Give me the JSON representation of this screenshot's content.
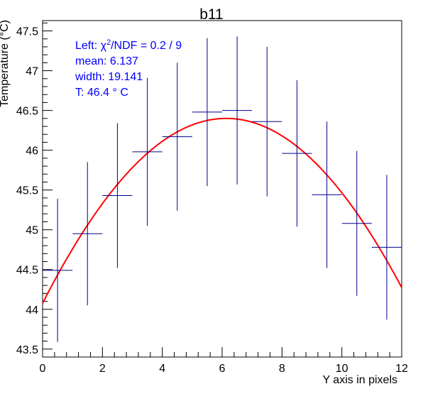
{
  "chart_data": {
    "type": "scatter",
    "title": "b11",
    "xlabel": "Y axis in pixels",
    "ylabel": "Temperature (°C)",
    "xlim": [
      0,
      12
    ],
    "ylim": [
      43.4,
      47.63
    ],
    "xticks": [
      0,
      2,
      4,
      6,
      8,
      10,
      12
    ],
    "yticks": [
      43.5,
      44,
      44.5,
      45,
      45.5,
      46,
      46.5,
      47,
      47.5
    ],
    "series": [
      {
        "name": "data",
        "x": [
          0.5,
          1.5,
          2.5,
          3.5,
          4.5,
          5.5,
          6.5,
          7.5,
          8.5,
          9.5,
          10.5,
          11.5
        ],
        "x_half_width": 0.5,
        "values": [
          44.49,
          44.95,
          45.43,
          45.98,
          46.17,
          46.48,
          46.5,
          46.36,
          45.96,
          45.44,
          45.08,
          44.78
        ],
        "errors": [
          0.9,
          0.9,
          0.91,
          0.93,
          0.93,
          0.93,
          0.93,
          0.94,
          0.92,
          0.92,
          0.91,
          0.91
        ],
        "color": "#00008b"
      },
      {
        "name": "fit",
        "type": "line",
        "model": "gaussian",
        "amplitude": 46.4,
        "mean": 6.137,
        "width": 19.141,
        "x_range": [
          0,
          12
        ],
        "color": "#ff0000"
      }
    ],
    "annotations": {
      "fit_prefix": "Left: ",
      "chi_symbol": "χ",
      "chi_sup": "2",
      "fit_suffix": "/NDF = 0.2 / 9",
      "mean": "mean: 6.137",
      "width": "width: 19.141",
      "temp": "T: 46.4  ° C",
      "color": "#0000ff"
    }
  }
}
